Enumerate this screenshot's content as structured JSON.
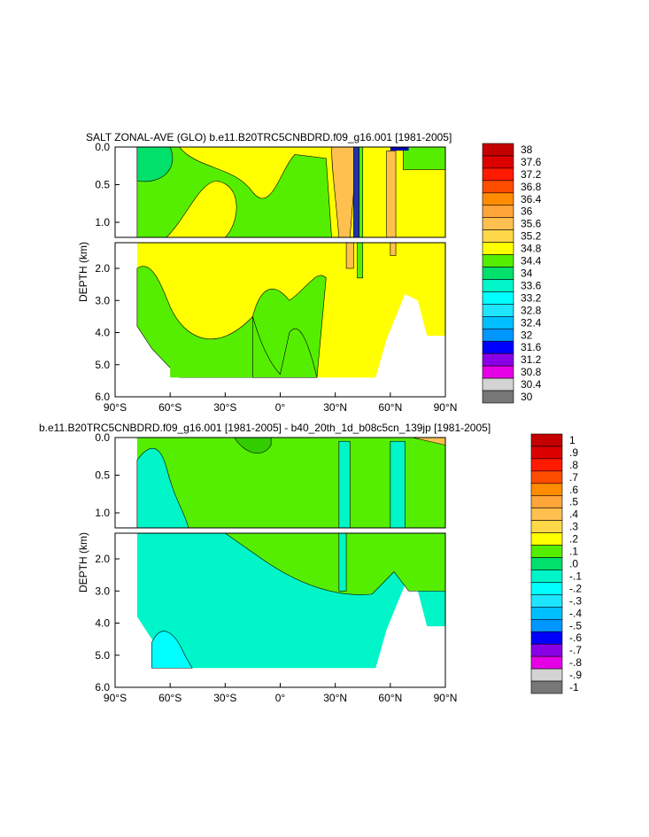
{
  "chart_data": [
    {
      "type": "heatmap",
      "title": "SALT ZONAL-AVE (GLO) b.e11.B20TRC5CNBDRD.f09_g16.001 [1981-2005]",
      "ylabel": "DEPTH (km)",
      "x_ticks": [
        "90°S",
        "60°S",
        "30°S",
        "0°",
        "30°N",
        "60°N",
        "90°N"
      ],
      "x_tick_values": [
        -90,
        -60,
        -30,
        0,
        30,
        60,
        90
      ],
      "y_ticks_upper": [
        "0.0",
        "0.5",
        "1.0"
      ],
      "y_ticks_lower": [
        "2.0",
        "3.0",
        "4.0",
        "5.0",
        "6.0"
      ],
      "xlim": [
        -90,
        90
      ],
      "ylim_upper": [
        0,
        1.2
      ],
      "ylim_lower": [
        1.2,
        6.0
      ],
      "colorbar_labels": [
        "38",
        "37.6",
        "37.2",
        "36.8",
        "36.4",
        "36",
        "35.6",
        "35.2",
        "34.8",
        "34.4",
        "34",
        "33.6",
        "33.2",
        "32.8",
        "32.4",
        "32",
        "31.6",
        "31.2",
        "30.8",
        "30.4",
        "30"
      ],
      "colorbar_colors": [
        "#c40000",
        "#dd0000",
        "#ff1a00",
        "#ff4d00",
        "#ff8c00",
        "#ffa53a",
        "#ffc04f",
        "#ffd84a",
        "#ffff00",
        "#55ee00",
        "#00e06a",
        "#00f5c8",
        "#00ffff",
        "#1fe6ff",
        "#00bfff",
        "#0096ff",
        "#0000ff",
        "#8a00e6",
        "#e600e6",
        "#d3d3d3",
        "#777777"
      ]
    },
    {
      "type": "heatmap",
      "title": "b.e11.B20TRC5CNBDRD.f09_g16.001 [1981-2005] - b40_20th_1d_b08c5cn_139jp [1981-2005]",
      "ylabel": "DEPTH (km)",
      "x_ticks": [
        "90°S",
        "60°S",
        "30°S",
        "0°",
        "30°N",
        "60°N",
        "90°N"
      ],
      "x_tick_values": [
        -90,
        -60,
        -30,
        0,
        30,
        60,
        90
      ],
      "y_ticks_upper": [
        "0.0",
        "0.5",
        "1.0"
      ],
      "y_ticks_lower": [
        "2.0",
        "3.0",
        "4.0",
        "5.0",
        "6.0"
      ],
      "xlim": [
        -90,
        90
      ],
      "ylim_upper": [
        0,
        1.2
      ],
      "ylim_lower": [
        1.2,
        6.0
      ],
      "colorbar_labels": [
        "1",
        ".9",
        ".8",
        ".7",
        ".6",
        ".5",
        ".4",
        ".3",
        ".2",
        ".1",
        ".0",
        "-.1",
        "-.2",
        "-.3",
        "-.4",
        "-.5",
        "-.6",
        "-.7",
        "-.8",
        "-.9",
        "-1"
      ],
      "colorbar_colors": [
        "#c40000",
        "#dd0000",
        "#ff1a00",
        "#ff4d00",
        "#ff8c00",
        "#ffa53a",
        "#ffc04f",
        "#ffd84a",
        "#ffff00",
        "#55ee00",
        "#00e06a",
        "#00f5c8",
        "#00ffff",
        "#1fe6ff",
        "#00bfff",
        "#0096ff",
        "#0000ff",
        "#8a00e6",
        "#e600e6",
        "#d3d3d3",
        "#777777"
      ]
    }
  ]
}
